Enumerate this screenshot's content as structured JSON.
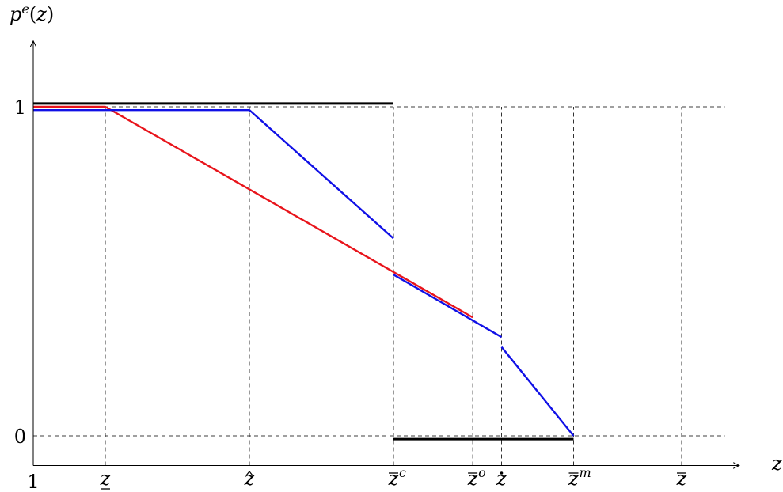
{
  "chart_data": {
    "type": "line",
    "ylabel": {
      "base": "p",
      "sup": "e",
      "rest": "(z)"
    },
    "xlabel": "z",
    "y_ticks": [
      {
        "value": 1,
        "label": "1"
      },
      {
        "value": 0,
        "label": "0"
      }
    ],
    "x_origin_label": "1",
    "x_ticks": [
      {
        "key": "zlow",
        "pos": 1.0,
        "base": "z",
        "mark": "under",
        "sup": ""
      },
      {
        "key": "zhat",
        "pos": 3.0,
        "base": "z",
        "mark": "hat",
        "sup": ""
      },
      {
        "key": "zc",
        "pos": 5.0,
        "base": "z",
        "mark": "bar",
        "sup": "c"
      },
      {
        "key": "zo",
        "pos": 6.1,
        "base": "z",
        "mark": "bar",
        "sup": "o"
      },
      {
        "key": "zdot",
        "pos": 6.5,
        "base": "z",
        "mark": "dot",
        "sup": ""
      },
      {
        "key": "zm",
        "pos": 7.5,
        "base": "z",
        "mark": "bar",
        "sup": "m"
      },
      {
        "key": "zbar",
        "pos": 9.0,
        "base": "z",
        "mark": "bar",
        "sup": ""
      }
    ],
    "xlim": [
      0,
      9.8
    ],
    "ylim": [
      -0.09,
      1.2
    ],
    "grid": "dashed at tick values",
    "series": [
      {
        "color": "#000000",
        "segments": [
          [
            [
              0,
              1.01
            ],
            [
              5.0,
              1.01
            ]
          ],
          [
            [
              5.0,
              -0.01
            ],
            [
              7.5,
              -0.01
            ]
          ]
        ]
      },
      {
        "color": "#e8141b",
        "segments": [
          [
            [
              0,
              1.0
            ],
            [
              1.0,
              1.0
            ],
            [
              6.1,
              0.36
            ]
          ]
        ]
      },
      {
        "color": "#1010e6",
        "segments": [
          [
            [
              0,
              0.99
            ],
            [
              3.0,
              0.99
            ],
            [
              5.0,
              0.6
            ]
          ],
          [
            [
              5.0,
              0.49
            ],
            [
              6.5,
              0.3
            ]
          ],
          [
            [
              6.5,
              0.27
            ],
            [
              7.5,
              0.0
            ]
          ]
        ]
      }
    ]
  }
}
